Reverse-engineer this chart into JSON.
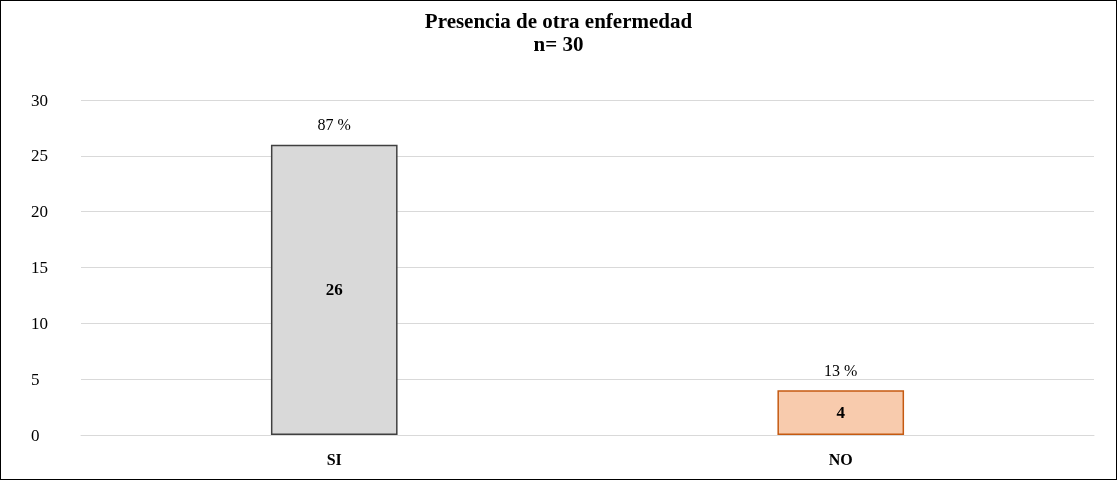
{
  "chart_data": {
    "type": "bar",
    "title": "Presencia de otra enfermedad",
    "subtitle": "n= 30",
    "categories": [
      "SI",
      "NO"
    ],
    "values": [
      26,
      4
    ],
    "colors": [
      "#d9d9d9",
      "#f8cbad"
    ],
    "data_labels": true,
    "annotations": [
      {
        "text": "87 %",
        "x": "SI",
        "y": 26
      },
      {
        "text": "13 %",
        "x": "NO",
        "y": 4
      }
    ],
    "ylim": [
      0,
      30
    ],
    "yticks": [
      0,
      5,
      10,
      15,
      20,
      25,
      30
    ],
    "grid": "y"
  }
}
